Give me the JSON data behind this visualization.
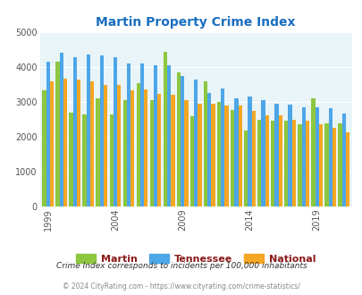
{
  "title": "Martin Property Crime Index",
  "years": [
    1999,
    2000,
    2001,
    2002,
    2003,
    2004,
    2005,
    2006,
    2007,
    2008,
    2009,
    2010,
    2011,
    2012,
    2013,
    2014,
    2015,
    2016,
    2017,
    2018,
    2019,
    2020,
    2021
  ],
  "martin": [
    3350,
    4170,
    2700,
    2650,
    3100,
    2650,
    3050,
    3550,
    3050,
    4450,
    3850,
    2600,
    3600,
    3000,
    2780,
    2180,
    2500,
    2460,
    2460,
    2370,
    3120,
    2380,
    2380
  ],
  "tennessee": [
    4150,
    4420,
    4300,
    4370,
    4350,
    4300,
    4100,
    4100,
    4050,
    4050,
    3760,
    3650,
    3250,
    3400,
    3100,
    3170,
    3050,
    2950,
    2920,
    2860,
    2840,
    2820,
    2660
  ],
  "national": [
    3600,
    3670,
    3650,
    3600,
    3500,
    3490,
    3350,
    3370,
    3230,
    3210,
    3050,
    2960,
    2960,
    2910,
    2890,
    2750,
    2620,
    2610,
    2500,
    2470,
    2350,
    2270,
    2120
  ],
  "bar_colors": {
    "martin": "#8dc63f",
    "tennessee": "#4da6e8",
    "national": "#f5a623"
  },
  "bg_color": "#e8f4f8",
  "ylim": [
    0,
    5000
  ],
  "yticks": [
    0,
    1000,
    2000,
    3000,
    4000,
    5000
  ],
  "xtick_labels": [
    "1999",
    "2004",
    "2009",
    "2014",
    "2019"
  ],
  "xtick_positions": [
    0,
    5,
    10,
    15,
    20
  ],
  "footnote1": "Crime Index corresponds to incidents per 100,000 inhabitants",
  "footnote2": "© 2024 CityRating.com - https://www.cityrating.com/crime-statistics/",
  "title_color": "#1a6ec0",
  "legend_labels": [
    "Martin",
    "Tennessee",
    "National"
  ],
  "legend_label_color": "#8b1a1a",
  "footnote1_color": "#333333",
  "footnote2_color": "#888888"
}
